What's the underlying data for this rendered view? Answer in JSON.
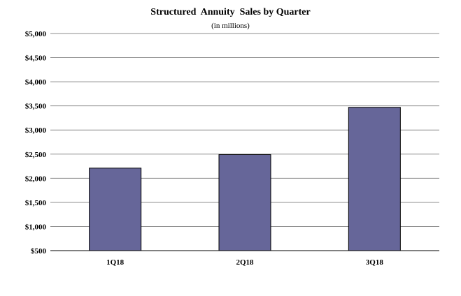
{
  "chart_data": {
    "type": "bar",
    "title": "Structured  Annuity  Sales by Quarter",
    "subtitle": "(in millions)",
    "categories": [
      "1Q18",
      "2Q18",
      "3Q18"
    ],
    "values": [
      2210,
      2490,
      3470
    ],
    "ylim": [
      500,
      5000
    ],
    "yticks": [
      500,
      1000,
      1500,
      2000,
      2500,
      3000,
      3500,
      4000,
      4500,
      5000
    ],
    "ytick_labels": [
      "$500",
      "$1,000",
      "$1,500",
      "$2,000",
      "$2,500",
      "$3,000",
      "$3,500",
      "$4,000",
      "$4,500",
      "$5,000"
    ],
    "grid": true,
    "bar_color": "#666699"
  }
}
